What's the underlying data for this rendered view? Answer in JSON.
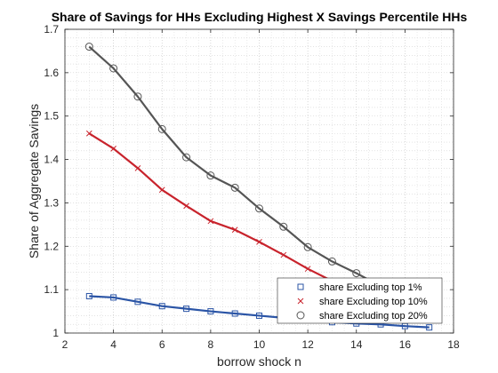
{
  "chart_data": {
    "type": "line",
    "title": "Share of Savings for HHs Excluding Highest X Savings Percentile HHs",
    "xlabel": "borrow shock n",
    "ylabel": "Share of Aggregate Savings",
    "xlim": [
      2,
      18
    ],
    "ylim": [
      1,
      1.7
    ],
    "xticks": [
      2,
      4,
      6,
      8,
      10,
      12,
      14,
      16,
      18
    ],
    "yticks": [
      1,
      1.1,
      1.2,
      1.3,
      1.4,
      1.5,
      1.6,
      1.7
    ],
    "grid": "minor dotted",
    "legend_position": "bottom-right",
    "x": [
      3,
      4,
      5,
      6,
      7,
      8,
      9,
      10,
      11,
      12,
      13,
      14,
      15,
      16,
      17
    ],
    "series": [
      {
        "name": "share Excluding top 1%",
        "color": "#2b55a6",
        "marker": "square",
        "values": [
          1.085,
          1.082,
          1.072,
          1.062,
          1.056,
          1.05,
          1.045,
          1.04,
          1.035,
          1.03,
          1.025,
          1.022,
          1.02,
          1.016,
          1.013
        ]
      },
      {
        "name": "share Excluding top 10%",
        "color": "#c8232c",
        "marker": "x",
        "values": [
          1.46,
          1.425,
          1.38,
          1.33,
          1.293,
          1.258,
          1.238,
          1.21,
          1.18,
          1.148,
          1.12,
          1.1,
          1.085,
          1.072,
          1.06
        ]
      },
      {
        "name": "share Excluding top 20%",
        "color": "#555555",
        "marker": "circle",
        "values": [
          1.66,
          1.61,
          1.545,
          1.47,
          1.405,
          1.363,
          1.335,
          1.287,
          1.245,
          1.198,
          1.165,
          1.138,
          1.108,
          1.085,
          1.065
        ]
      }
    ]
  }
}
